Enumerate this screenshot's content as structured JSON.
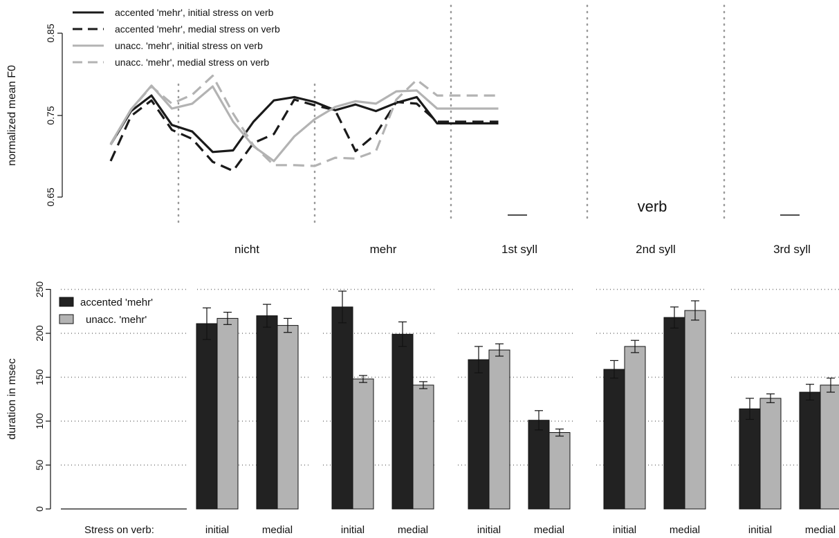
{
  "chart_data": [
    {
      "type": "line",
      "ylabel": "normalized mean F0",
      "y_ticks": [
        "0.65",
        "0.75",
        "0.85"
      ],
      "ylim": [
        0.65,
        0.85
      ],
      "regions": [
        "nicht",
        "mehr",
        "1st syll",
        "2nd syll",
        "3rd syll"
      ],
      "verb_label": "verb",
      "grid": "dotted vertical region dividers",
      "legend_position": "top-left",
      "series": [
        {
          "name": "accented 'mehr', initial stress on verb",
          "style": "solid",
          "color": "#1a1a1a",
          "x": [
            0,
            0.5,
            1,
            1.5,
            2,
            2.5,
            3,
            3.5,
            4,
            4.5,
            5,
            5.5,
            6,
            6.5,
            7,
            7.5,
            8,
            8.5,
            9,
            9.5
          ],
          "y": [
            0.714,
            0.755,
            0.774,
            0.738,
            0.73,
            0.705,
            0.707,
            0.742,
            0.768,
            0.772,
            0.766,
            0.756,
            0.763,
            0.755,
            0.765,
            0.772,
            0.74,
            0.74,
            0.74,
            0.74
          ]
        },
        {
          "name": "accented 'mehr', medial stress on verb",
          "style": "dashed",
          "color": "#1a1a1a",
          "x": [
            0,
            0.5,
            1,
            1.5,
            2,
            2.5,
            3,
            3.5,
            4,
            4.5,
            5,
            5.5,
            6,
            6.5,
            7,
            7.5,
            8,
            8.5,
            9,
            9.5
          ],
          "y": [
            0.694,
            0.749,
            0.768,
            0.732,
            0.721,
            0.693,
            0.682,
            0.716,
            0.727,
            0.769,
            0.762,
            0.756,
            0.706,
            0.727,
            0.766,
            0.764,
            0.742,
            0.742,
            0.742,
            0.742
          ]
        },
        {
          "name": "unacc. 'mehr', initial stress on verb",
          "style": "solid",
          "color": "#b3b3b3",
          "x": [
            0,
            0.5,
            1,
            1.5,
            2,
            2.5,
            3,
            3.5,
            4,
            4.5,
            5,
            5.5,
            6,
            6.5,
            7,
            7.5,
            8,
            8.5,
            9,
            9.5
          ],
          "y": [
            0.715,
            0.757,
            0.786,
            0.758,
            0.764,
            0.785,
            0.742,
            0.712,
            0.694,
            0.724,
            0.745,
            0.76,
            0.767,
            0.764,
            0.779,
            0.78,
            0.758,
            0.758,
            0.758,
            0.758
          ]
        },
        {
          "name": "unacc. 'mehr', medial stress on verb",
          "style": "dashed",
          "color": "#b3b3b3",
          "x": [
            0,
            0.5,
            1,
            1.5,
            2,
            2.5,
            3,
            3.5,
            4,
            4.5,
            5,
            5.5,
            6,
            6.5,
            7,
            7.5,
            8,
            8.5,
            9,
            9.5
          ],
          "y": [
            0.714,
            0.757,
            0.785,
            0.764,
            0.775,
            0.798,
            0.752,
            0.713,
            0.689,
            0.689,
            0.688,
            0.698,
            0.697,
            0.706,
            0.769,
            0.793,
            0.774,
            0.774,
            0.774,
            0.774
          ]
        }
      ]
    },
    {
      "type": "bar",
      "ylabel": "duration in msec",
      "ylim": [
        0,
        250
      ],
      "y_ticks": [
        "0",
        "50",
        "100",
        "150",
        "200",
        "250"
      ],
      "grid": "dotted horizontal at 50, 100, 150, 200, 250",
      "legend_position": "top-left",
      "xlabel_prefix": "Stress on verb:",
      "groups": [
        "nicht",
        "mehr",
        "1st syll",
        "2nd syll",
        "3rd syll"
      ],
      "conditions": [
        "initial",
        "medial"
      ],
      "series": [
        {
          "name": "accented 'mehr'",
          "color": "#222222",
          "values": [
            [
              211,
              220
            ],
            [
              230,
              199
            ],
            [
              170,
              101
            ],
            [
              159,
              218
            ],
            [
              114,
              133
            ]
          ],
          "errors": [
            [
              18,
              13
            ],
            [
              18,
              14
            ],
            [
              15,
              11
            ],
            [
              10,
              12
            ],
            [
              12,
              9
            ]
          ]
        },
        {
          "name": "unacc. 'mehr'",
          "color": "#b3b3b3",
          "values": [
            [
              217,
              209
            ],
            [
              148,
              141
            ],
            [
              181,
              87
            ],
            [
              185,
              226
            ],
            [
              126,
              141
            ]
          ],
          "errors": [
            [
              7,
              8
            ],
            [
              4,
              4
            ],
            [
              7,
              4
            ],
            [
              7,
              11
            ],
            [
              5,
              8
            ]
          ]
        }
      ]
    }
  ]
}
